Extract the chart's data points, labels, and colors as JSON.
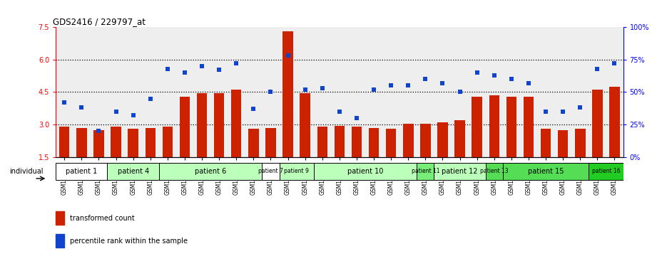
{
  "title": "GDS2416 / 229797_at",
  "samples": [
    "GSM135233",
    "GSM135234",
    "GSM135260",
    "GSM135232",
    "GSM135235",
    "GSM135236",
    "GSM135231",
    "GSM135242",
    "GSM135243",
    "GSM135251",
    "GSM135252",
    "GSM135244",
    "GSM135259",
    "GSM135254",
    "GSM135255",
    "GSM135261",
    "GSM135229",
    "GSM135230",
    "GSM135245",
    "GSM135246",
    "GSM135258",
    "GSM135247",
    "GSM135250",
    "GSM135237",
    "GSM135238",
    "GSM135239",
    "GSM135256",
    "GSM135257",
    "GSM135240",
    "GSM135248",
    "GSM135253",
    "GSM135241",
    "GSM135249"
  ],
  "bar_values": [
    2.9,
    2.85,
    2.75,
    2.9,
    2.8,
    2.85,
    2.9,
    4.3,
    4.45,
    4.45,
    4.6,
    2.8,
    2.85,
    7.3,
    4.45,
    2.9,
    2.95,
    2.9,
    2.85,
    2.8,
    3.05,
    3.05,
    3.1,
    3.2,
    4.3,
    4.35,
    4.3,
    4.3,
    2.8,
    2.75,
    2.8,
    4.6,
    4.75
  ],
  "dot_values_pct": [
    42,
    38,
    20,
    35,
    32,
    45,
    68,
    65,
    70,
    67,
    72,
    37,
    50,
    78,
    52,
    53,
    35,
    30,
    52,
    55,
    55,
    60,
    57,
    50,
    65,
    63,
    60,
    57,
    35,
    35,
    38,
    68,
    72
  ],
  "patients": [
    {
      "label": "patient 1",
      "start": 0,
      "end": 2,
      "color": "#ffffff"
    },
    {
      "label": "patient 4",
      "start": 3,
      "end": 5,
      "color": "#bbffbb"
    },
    {
      "label": "patient 6",
      "start": 6,
      "end": 11,
      "color": "#bbffbb"
    },
    {
      "label": "patient 7",
      "start": 12,
      "end": 12,
      "color": "#ffffff"
    },
    {
      "label": "patient 9",
      "start": 13,
      "end": 14,
      "color": "#bbffbb"
    },
    {
      "label": "patient 10",
      "start": 15,
      "end": 20,
      "color": "#bbffbb"
    },
    {
      "label": "patient 11",
      "start": 21,
      "end": 21,
      "color": "#77ee77"
    },
    {
      "label": "patient 12",
      "start": 22,
      "end": 24,
      "color": "#bbffbb"
    },
    {
      "label": "patient 13",
      "start": 25,
      "end": 25,
      "color": "#55dd55"
    },
    {
      "label": "patient 15",
      "start": 26,
      "end": 30,
      "color": "#55dd55"
    },
    {
      "label": "patient 16",
      "start": 31,
      "end": 32,
      "color": "#22cc22"
    }
  ],
  "ylim_left": [
    1.5,
    7.5
  ],
  "ylim_right": [
    0,
    100
  ],
  "yticks_left": [
    1.5,
    3.0,
    4.5,
    6.0,
    7.5
  ],
  "yticks_right": [
    0,
    25,
    50,
    75,
    100
  ],
  "ytick_labels_right": [
    "0%",
    "25%",
    "50%",
    "75%",
    "100%"
  ],
  "bar_color": "#cc2200",
  "dot_color": "#1144cc",
  "grid_lines": [
    3.0,
    4.5,
    6.0
  ],
  "bar_bottom": 1.5
}
